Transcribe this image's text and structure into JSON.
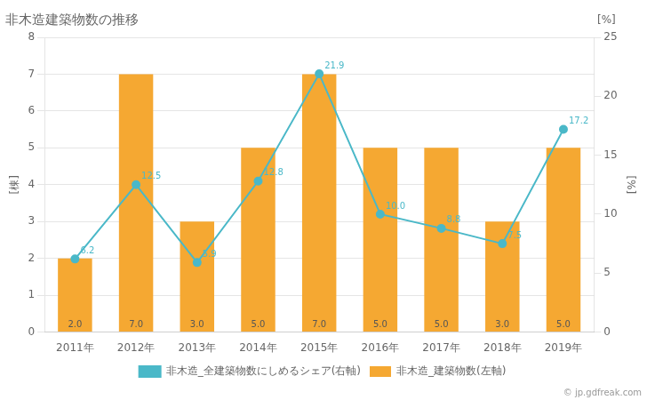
{
  "chart_data": {
    "type": "bar",
    "title": "非木造建築物数の推移",
    "categories": [
      "2011年",
      "2012年",
      "2013年",
      "2014年",
      "2015年",
      "2016年",
      "2017年",
      "2018年",
      "2019年"
    ],
    "ylabel": "[棟]",
    "y2label": "[%]",
    "annotations": [
      "[%]",
      "© jp.gdfreak.com"
    ],
    "series": [
      {
        "name": "非木造_建築物数(左軸)",
        "type": "bar",
        "color": "#f5a832",
        "values": [
          2.0,
          7.0,
          3.0,
          5.0,
          7.0,
          5.0,
          5.0,
          3.0,
          5.0
        ],
        "value_labels": [
          "2.0",
          "7.0",
          "3.0",
          "5.0",
          "7.0",
          "5.0",
          "5.0",
          "3.0",
          "5.0"
        ]
      },
      {
        "name": "非木造_全建築物数にしめるシェア(右軸)",
        "type": "line",
        "color": "#4ab8c8",
        "marker": "circle",
        "axis": "y2",
        "values": [
          6.2,
          12.5,
          5.9,
          12.8,
          21.9,
          10.0,
          8.8,
          7.5,
          17.2
        ],
        "value_labels": [
          "6.2",
          "12.5",
          "5.9",
          "12.8",
          "21.9",
          "10.0",
          "8.8",
          "7.5",
          "17.2"
        ]
      }
    ],
    "ylim": [
      0,
      8
    ],
    "yticks": [
      0,
      1,
      2,
      3,
      4,
      5,
      6,
      7,
      8
    ],
    "y2lim": [
      0.0,
      25.0
    ],
    "y2ticks": [
      0.0,
      5.0,
      10.0,
      15.0,
      20.0,
      25.0
    ],
    "grid": true,
    "data_labels": true,
    "legend": "bottom"
  }
}
